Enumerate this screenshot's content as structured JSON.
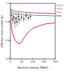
{
  "chart_data": {
    "type": "line",
    "x_label": "Neutron energy [MeV]",
    "y_label": "Effective cross section [b]",
    "xlim": [
      0,
      200
    ],
    "xticks": [
      0,
      50,
      100,
      150,
      200
    ],
    "ylim": [
      0,
      1.2
    ],
    "yticks": [
      {
        "value": 0,
        "label": "0.0"
      },
      {
        "value": 0.4,
        "label": "0.4"
      },
      {
        "value": 0.8,
        "label": "0.8"
      },
      {
        "value": 1.2,
        "label": "1.2"
      }
    ],
    "legend": "upper right",
    "series": [
      {
        "name": "JENDL",
        "color": "#2db82d",
        "type": "line",
        "x": [
          0,
          10,
          20,
          40,
          60,
          80,
          100,
          120,
          150,
          200
        ],
        "values": [
          1.02,
          1.0,
          0.98,
          0.97,
          0.96,
          0.95,
          0.95,
          0.94,
          0.94,
          0.93
        ]
      },
      {
        "name": "ENDF",
        "color": "#d020d0",
        "type": "line",
        "x": [
          0,
          10,
          20,
          40,
          60,
          80,
          100,
          120,
          150,
          200
        ],
        "values": [
          1.08,
          1.05,
          1.03,
          1.02,
          1.01,
          1.0,
          1.0,
          0.99,
          0.99,
          0.98
        ]
      },
      {
        "name": "Calc.",
        "color": "#e02020",
        "type": "line",
        "x": [
          0,
          5,
          10,
          20,
          30,
          40,
          50,
          60,
          80,
          100,
          130,
          160,
          200
        ],
        "values": [
          0.85,
          0.7,
          0.55,
          0.42,
          0.35,
          0.33,
          0.36,
          0.45,
          0.58,
          0.66,
          0.72,
          0.76,
          0.78
        ]
      },
      {
        "name": "Exp.",
        "color": "#000000",
        "type": "scatter",
        "marker": "circle",
        "x": [
          5,
          10,
          15,
          20,
          25,
          30,
          35,
          40,
          50,
          60,
          70,
          80,
          90
        ],
        "values": [
          0.95,
          0.85,
          0.9,
          0.78,
          0.88,
          0.8,
          0.92,
          0.85,
          0.9,
          0.87,
          0.93,
          0.89,
          0.91
        ],
        "errors": [
          0.12,
          0.1,
          0.1,
          0.12,
          0.1,
          0.1,
          0.08,
          0.1,
          0.08,
          0.08,
          0.08,
          0.07,
          0.07
        ]
      }
    ]
  }
}
